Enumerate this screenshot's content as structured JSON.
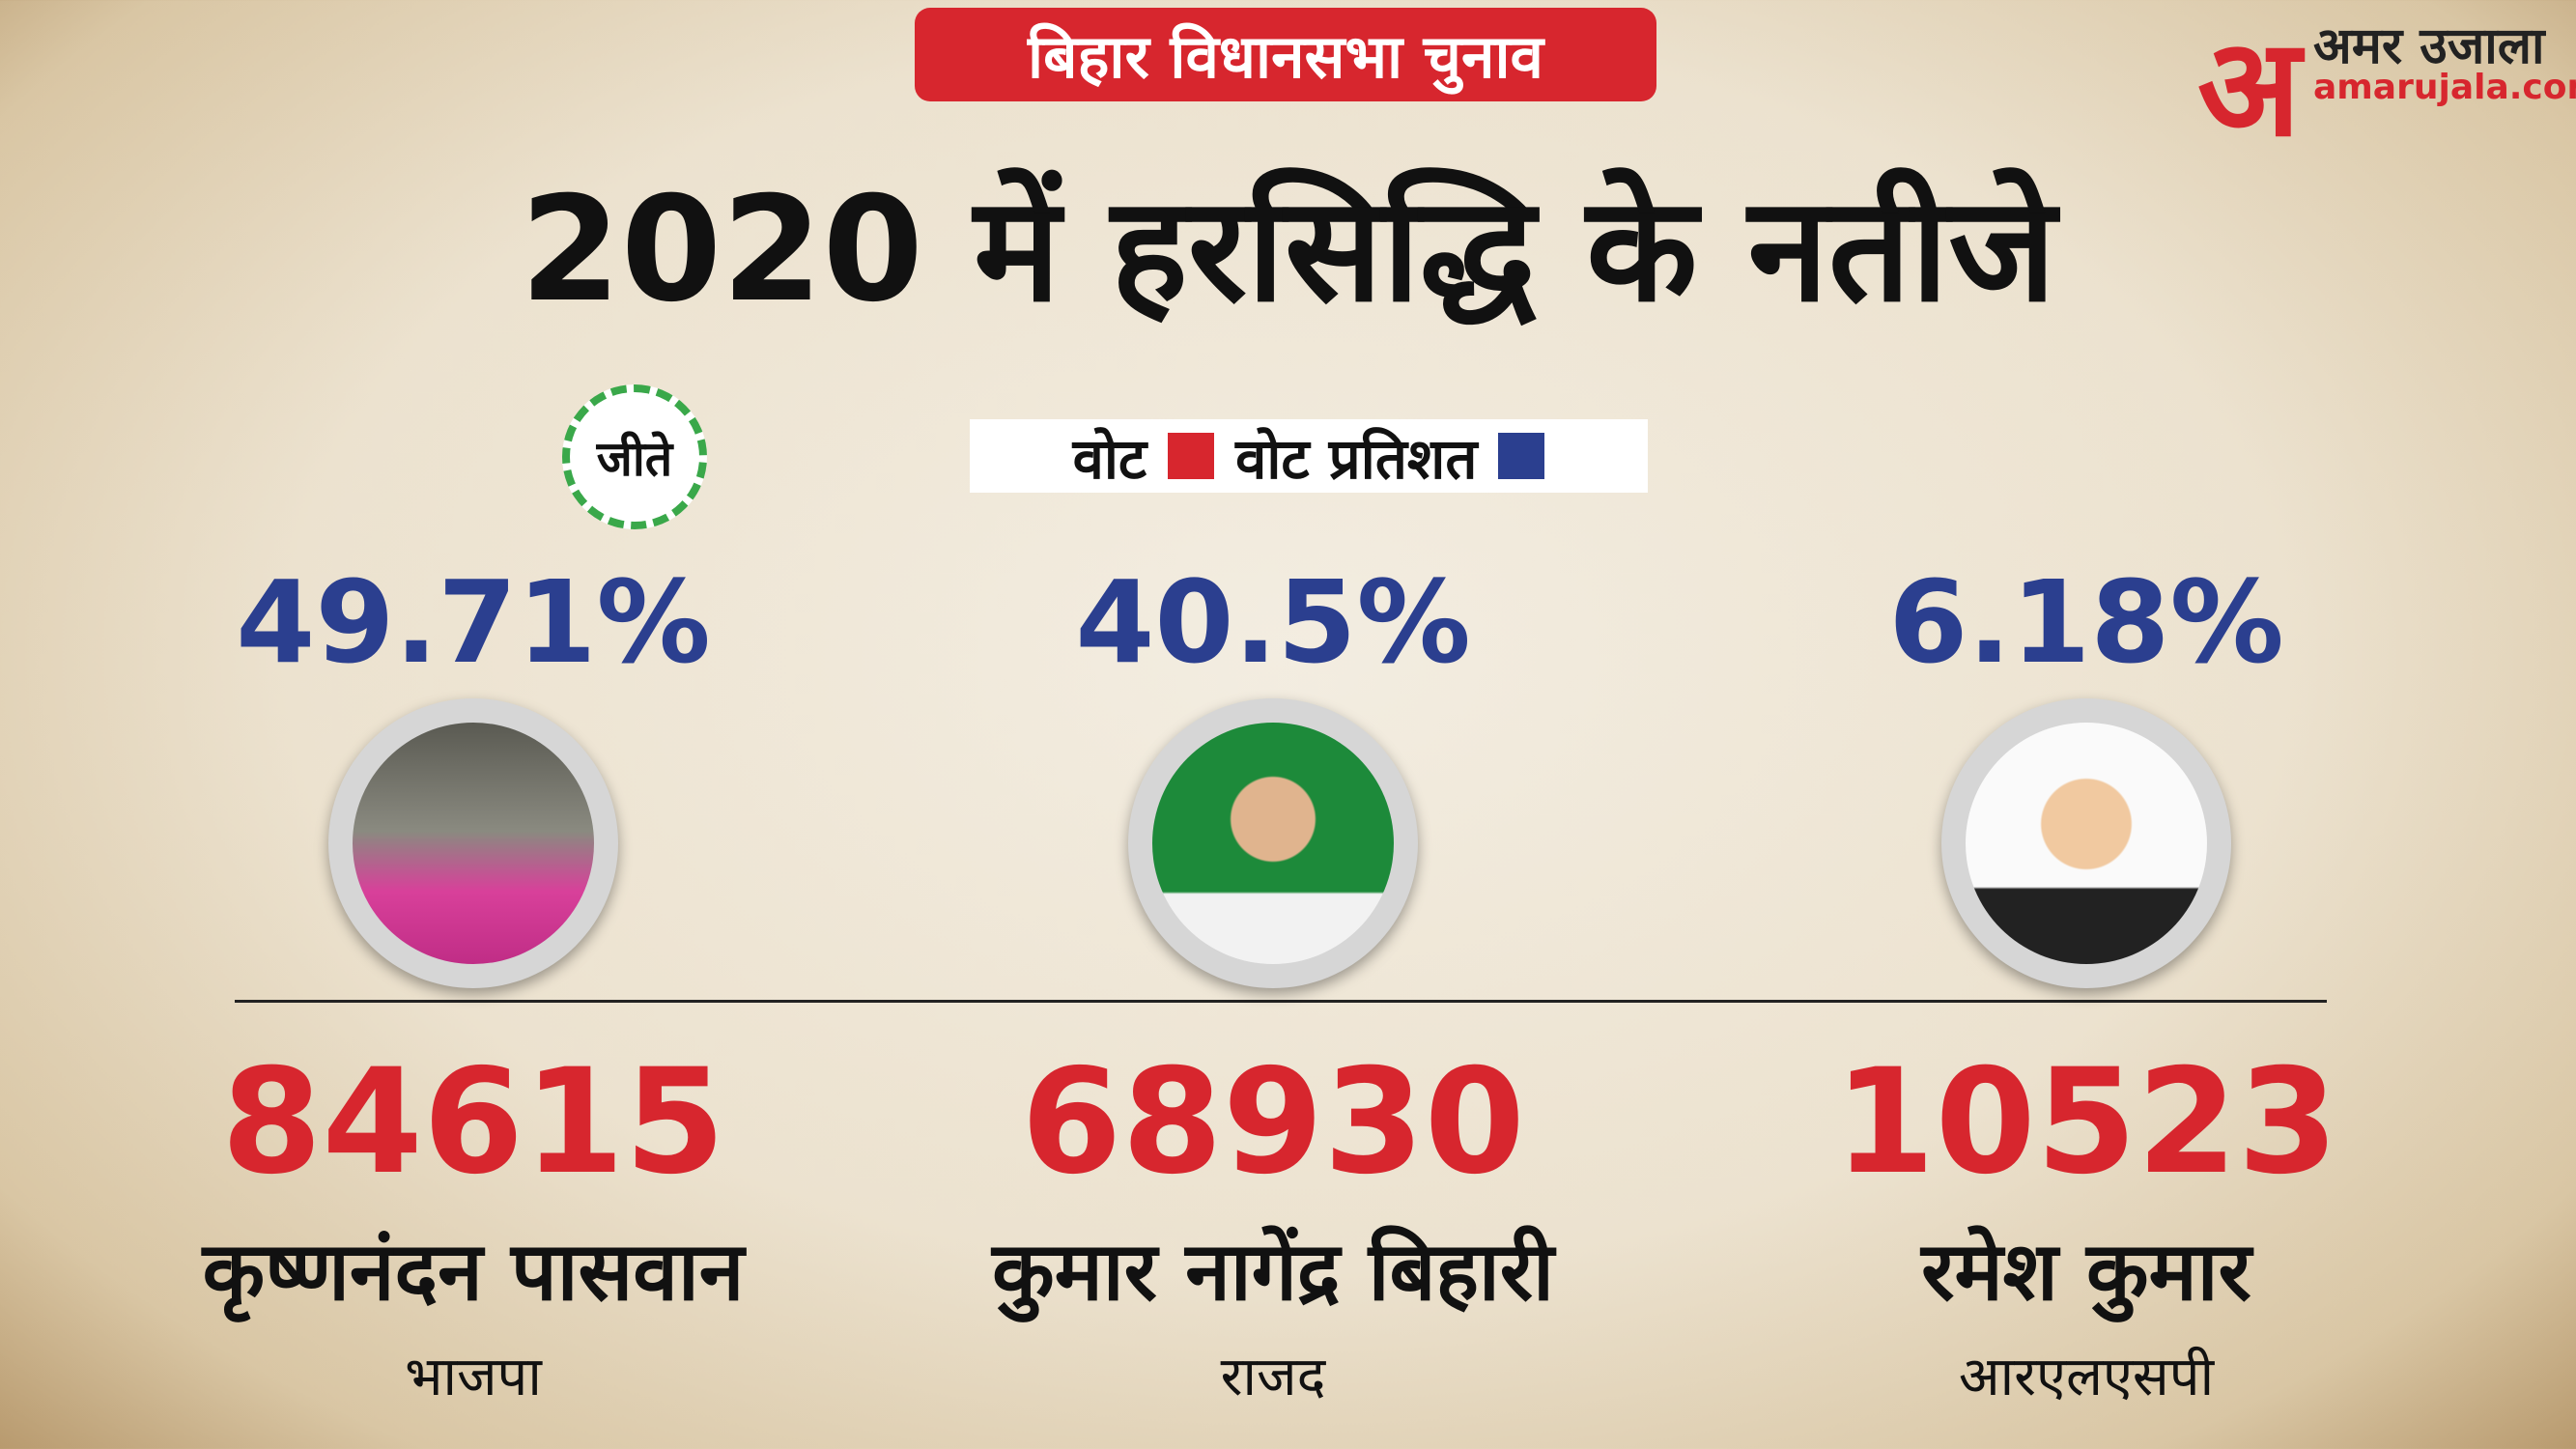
{
  "header": {
    "tag": "बिहार विधानसभा चुनाव",
    "title": "2020 में हरसिद्धि के नतीजे"
  },
  "brand": {
    "logo": "अ",
    "name": "अमर उजाला",
    "site": "amarujala.com"
  },
  "legend": {
    "votes": "वोट",
    "percent": "वोट प्रतिशत"
  },
  "winner_badge": "जीते",
  "candidates": [
    {
      "percent": "49.71%",
      "votes": "84615",
      "name": "कृष्णनंदन पासवान",
      "party": "भाजपा"
    },
    {
      "percent": "40.5%",
      "votes": "68930",
      "name": "कुमार नागेंद्र बिहारी",
      "party": "राजद"
    },
    {
      "percent": "6.18%",
      "votes": "10523",
      "name": "रमेश कुमार",
      "party": "आरएलएसपी"
    }
  ]
}
